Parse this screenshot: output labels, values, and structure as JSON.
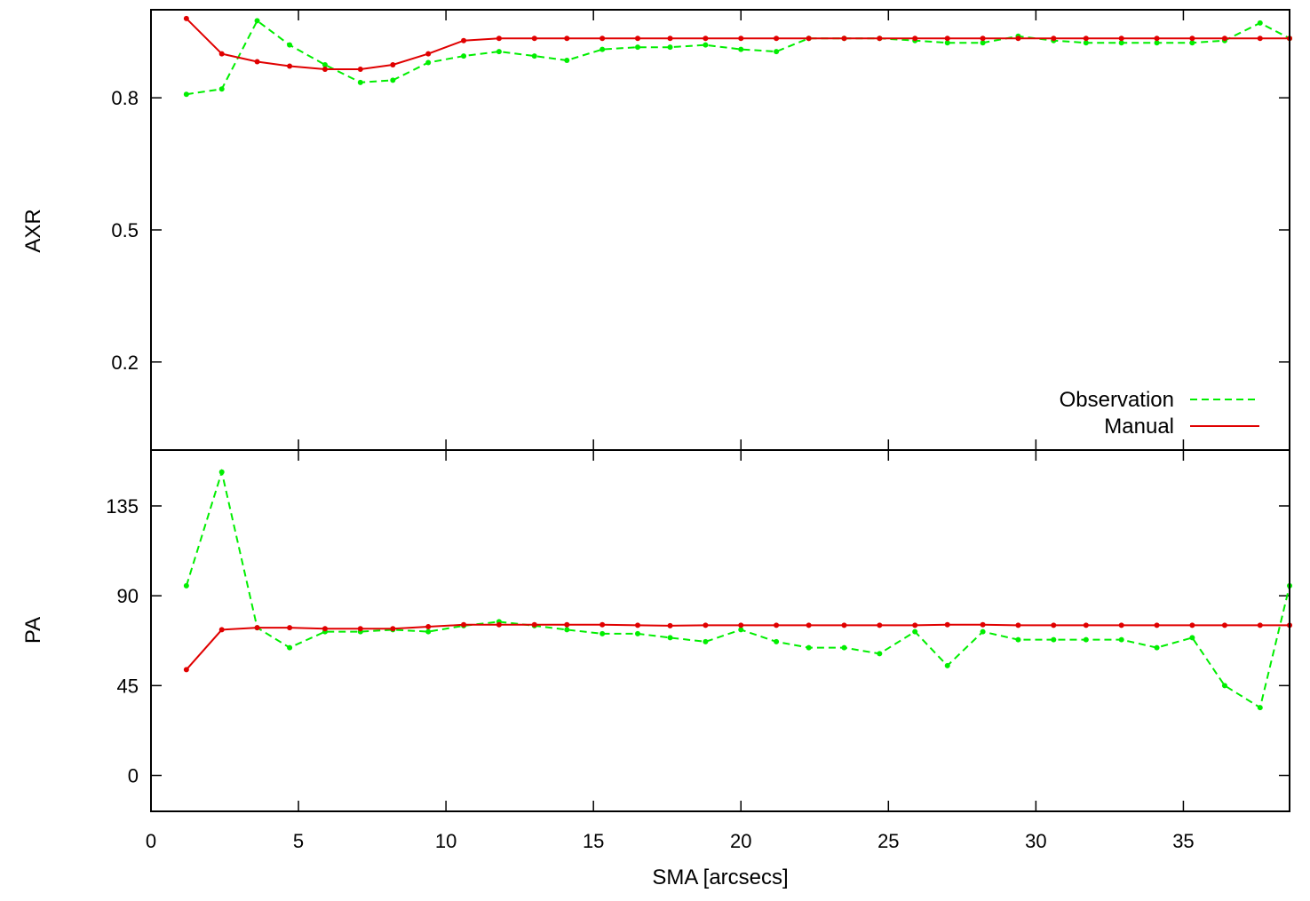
{
  "chart_data": [
    {
      "type": "line",
      "panel": "top",
      "ylabel": "AXR",
      "xlim": [
        0,
        38.6
      ],
      "ylim": [
        -0.0,
        1.0
      ],
      "yticks": [
        0.2,
        0.5,
        0.8
      ],
      "ytick_labels": [
        "0.2",
        "0.5",
        "0.8"
      ],
      "legend_position": "bottom-right",
      "series": [
        {
          "name": "Observation",
          "color": "#00ee00",
          "style": "dashed",
          "markers": true,
          "x": [
            1.2,
            2.4,
            3.6,
            4.7,
            5.9,
            7.1,
            8.2,
            9.4,
            10.6,
            11.8,
            13.0,
            14.1,
            15.3,
            16.5,
            17.6,
            18.8,
            20.0,
            21.2,
            22.3,
            23.5,
            24.7,
            25.9,
            27.0,
            28.2,
            29.4,
            30.6,
            31.7,
            32.9,
            34.1,
            35.3,
            36.4,
            37.6,
            38.6
          ],
          "y": [
            0.808,
            0.82,
            0.975,
            0.92,
            0.875,
            0.835,
            0.84,
            0.88,
            0.895,
            0.905,
            0.895,
            0.885,
            0.91,
            0.915,
            0.915,
            0.92,
            0.91,
            0.905,
            0.935,
            0.935,
            0.935,
            0.93,
            0.925,
            0.925,
            0.94,
            0.93,
            0.925,
            0.925,
            0.925,
            0.925,
            0.93,
            0.97,
            0.935
          ]
        },
        {
          "name": "Manual",
          "color": "#e00000",
          "style": "solid",
          "markers": true,
          "x": [
            1.2,
            2.4,
            3.6,
            4.7,
            5.9,
            7.1,
            8.2,
            9.4,
            10.6,
            11.8,
            13.0,
            14.1,
            15.3,
            16.5,
            17.6,
            18.8,
            20.0,
            21.2,
            22.3,
            23.5,
            24.7,
            25.9,
            27.0,
            28.2,
            29.4,
            30.6,
            31.7,
            32.9,
            34.1,
            35.3,
            36.4,
            37.6,
            38.6
          ],
          "y": [
            0.98,
            0.9,
            0.882,
            0.872,
            0.865,
            0.865,
            0.875,
            0.9,
            0.93,
            0.935,
            0.935,
            0.935,
            0.935,
            0.935,
            0.935,
            0.935,
            0.935,
            0.935,
            0.935,
            0.935,
            0.935,
            0.935,
            0.935,
            0.935,
            0.935,
            0.935,
            0.935,
            0.935,
            0.935,
            0.935,
            0.935,
            0.935,
            0.935
          ]
        }
      ]
    },
    {
      "type": "line",
      "panel": "bottom",
      "ylabel": "PA",
      "xlabel": "SMA [arcsecs]",
      "xlim": [
        0,
        38.6
      ],
      "ylim": [
        -18,
        163
      ],
      "xticks": [
        0,
        5,
        10,
        15,
        20,
        25,
        30,
        35
      ],
      "xtick_labels": [
        "0",
        "5",
        "10",
        "15",
        "20",
        "25",
        "30",
        "35"
      ],
      "yticks": [
        0,
        45,
        90,
        135
      ],
      "ytick_labels": [
        "0",
        "45",
        "90",
        "135"
      ],
      "series": [
        {
          "name": "Observation",
          "color": "#00ee00",
          "style": "dashed",
          "markers": true,
          "x": [
            1.2,
            2.4,
            3.6,
            4.7,
            5.9,
            7.1,
            8.2,
            9.4,
            10.6,
            11.8,
            13.0,
            14.1,
            15.3,
            16.5,
            17.6,
            18.8,
            20.0,
            21.2,
            22.3,
            23.5,
            24.7,
            25.9,
            27.0,
            28.2,
            29.4,
            30.6,
            31.7,
            32.9,
            34.1,
            35.3,
            36.4,
            37.6,
            38.6
          ],
          "y": [
            95,
            152,
            74,
            64,
            72,
            72,
            73,
            72,
            75,
            77,
            75,
            73,
            71,
            71,
            69,
            67,
            73,
            67,
            64,
            64,
            61,
            72,
            55,
            72,
            68,
            68,
            68,
            68,
            64,
            69,
            45,
            34,
            95
          ]
        },
        {
          "name": "Manual",
          "color": "#e00000",
          "style": "solid",
          "markers": true,
          "x": [
            1.2,
            2.4,
            3.6,
            4.7,
            5.9,
            7.1,
            8.2,
            9.4,
            10.6,
            11.8,
            13.0,
            14.1,
            15.3,
            16.5,
            17.6,
            18.8,
            20.0,
            21.2,
            22.3,
            23.5,
            24.7,
            25.9,
            27.0,
            28.2,
            29.4,
            30.6,
            31.7,
            32.9,
            34.1,
            35.3,
            36.4,
            37.6,
            38.6
          ],
          "y": [
            53,
            73,
            74,
            74,
            73.5,
            73.5,
            73.5,
            74.5,
            75.5,
            75.5,
            75.5,
            75.5,
            75.5,
            75.2,
            75,
            75.2,
            75.2,
            75.2,
            75.2,
            75.2,
            75.2,
            75.2,
            75.5,
            75.5,
            75.2,
            75.2,
            75.2,
            75.2,
            75.2,
            75.2,
            75.2,
            75.2,
            75.2
          ]
        }
      ]
    }
  ],
  "legend": {
    "items": [
      {
        "label": "Observation",
        "color": "#00ee00",
        "style": "dashed"
      },
      {
        "label": "Manual",
        "color": "#e00000",
        "style": "solid"
      }
    ]
  }
}
